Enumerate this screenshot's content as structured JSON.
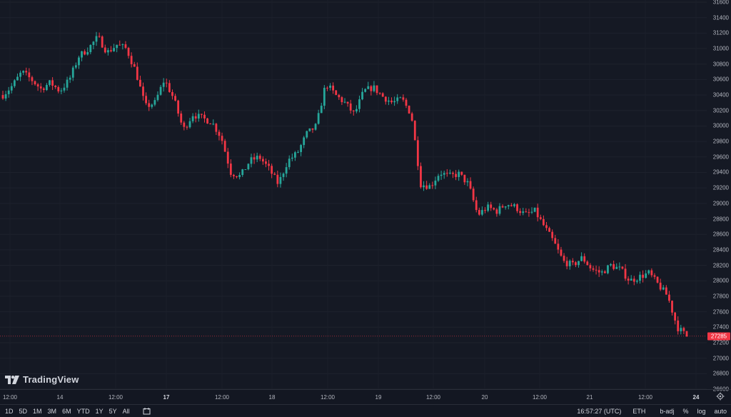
{
  "chart_data": {
    "type": "candlestick",
    "ylim": [
      26600,
      31600
    ],
    "y_ticks": [
      26600,
      26800,
      27000,
      27200,
      27400,
      27600,
      27800,
      28000,
      28200,
      28400,
      28600,
      28800,
      29000,
      29200,
      29400,
      29600,
      29800,
      30000,
      30200,
      30400,
      30600,
      30800,
      31000,
      31200,
      31400,
      31600
    ],
    "x_ticks": [
      {
        "label": "12:00",
        "major": false
      },
      {
        "label": "14",
        "major": false
      },
      {
        "label": "12:00",
        "major": false
      },
      {
        "label": "17",
        "major": true
      },
      {
        "label": "12:00",
        "major": false
      },
      {
        "label": "18",
        "major": false
      },
      {
        "label": "12:00",
        "major": false
      },
      {
        "label": "19",
        "major": false
      },
      {
        "label": "12:00",
        "major": false
      },
      {
        "label": "20",
        "major": false
      },
      {
        "label": "12:00",
        "major": false
      },
      {
        "label": "21",
        "major": false
      },
      {
        "label": "12:00",
        "major": false
      },
      {
        "label": "24",
        "major": true
      }
    ],
    "last_price": 27285,
    "up_color": "#26a69a",
    "down_color": "#f23645",
    "price_path": [
      30400,
      30520,
      30700,
      30600,
      30480,
      30560,
      30450,
      30600,
      30900,
      31000,
      31150,
      30950,
      31050,
      31000,
      30700,
      30250,
      30300,
      30600,
      30350,
      29950,
      30150,
      30100,
      30050,
      29850,
      29400,
      29350,
      29550,
      29600,
      29450,
      29250,
      29550,
      29650,
      29900,
      30000,
      30550,
      30400,
      30300,
      30150,
      30450,
      30500,
      30380,
      30300,
      30350,
      30150,
      29250,
      29220,
      29400,
      29350,
      29380,
      29250,
      28850,
      28950,
      28900,
      29000,
      28950,
      28850,
      28900,
      28700,
      28500,
      28250,
      28200,
      28300,
      28150,
      28100,
      28200,
      28150,
      28000,
      28050,
      28100,
      27950,
      27800,
      27400,
      27285
    ],
    "grid": true
  },
  "logo": {
    "text": "TradingView"
  },
  "ranges": [
    "1D",
    "5D",
    "1M",
    "3M",
    "6M",
    "YTD",
    "1Y",
    "5Y",
    "All"
  ],
  "clock": "16:57:27 (UTC)",
  "symbol": "ETH",
  "adjust_label": "b-adj",
  "percent_label": "%",
  "log_label": "log",
  "auto_label": "auto"
}
